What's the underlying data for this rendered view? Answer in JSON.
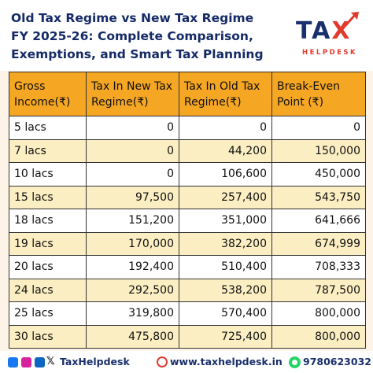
{
  "title_lines": [
    "Old Tax Regime vs New Tax Regime",
    "FY 2025-26: Complete Comparison,",
    "Exemptions, and Smart Tax Planning"
  ],
  "logo": {
    "main_prefix": "TA",
    "main_x": "X",
    "sub": "HELPDESK"
  },
  "table": {
    "headers": [
      "Gross Income(₹)",
      "Tax In New Tax Regime(₹)",
      "Tax In Old Tax Regime(₹)",
      "Break-Even Point (₹)"
    ],
    "rows": [
      [
        "5 lacs",
        "0",
        "0",
        "0"
      ],
      [
        "7 lacs",
        "0",
        "44,200",
        "150,000"
      ],
      [
        "10 lacs",
        "0",
        "106,600",
        "450,000"
      ],
      [
        "15 lacs",
        "97,500",
        "257,400",
        "543,750"
      ],
      [
        "18 lacs",
        "151,200",
        "351,000",
        "641,666"
      ],
      [
        "19 lacs",
        "170,000",
        "382,200",
        "674,999"
      ],
      [
        "20 lacs",
        "192,400",
        "510,400",
        "708,333"
      ],
      [
        "24 lacs",
        "292,500",
        "538,200",
        "787,500"
      ],
      [
        "25 lacs",
        "319,800",
        "570,400",
        "800,000"
      ],
      [
        "30 lacs",
        "475,800",
        "725,400",
        "800,000"
      ]
    ]
  },
  "footer": {
    "social_icons": [
      "facebook-icon",
      "instagram-icon",
      "linkedin-icon",
      "x-icon"
    ],
    "handle": "TaxHelpdesk",
    "website": "www.taxhelpdesk.in",
    "phone": "9780623032"
  },
  "colors": {
    "title": "#152a66",
    "header_bg": "#f5a623",
    "row_alt": "#fbeec2",
    "accent_red": "#e23b2e"
  }
}
